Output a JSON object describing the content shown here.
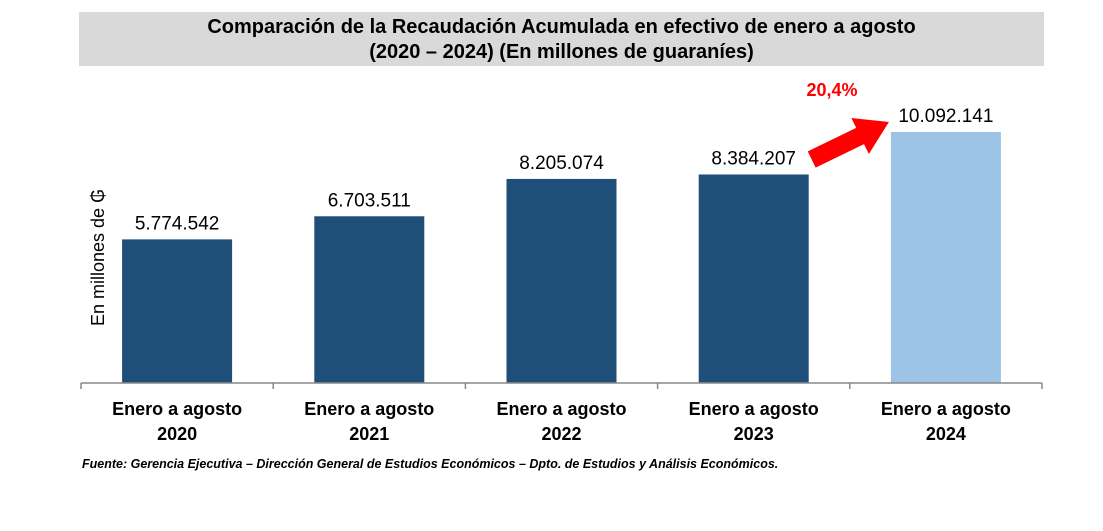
{
  "chart_data": {
    "type": "bar",
    "title_line1": "Comparación de la Recaudación Acumulada en efectivo de enero a agosto",
    "title_line2": "(2020 – 2024) (En millones de guaraníes)",
    "ylabel": "En millones de ₲",
    "xlabel": "",
    "categories": [
      {
        "line1": "Enero a agosto",
        "line2": "2020"
      },
      {
        "line1": "Enero a agosto",
        "line2": "2021"
      },
      {
        "line1": "Enero a agosto",
        "line2": "2022"
      },
      {
        "line1": "Enero a agosto",
        "line2": "2023"
      },
      {
        "line1": "Enero a agosto",
        "line2": "2024"
      }
    ],
    "values": [
      5774542,
      6703511,
      8205074,
      8384207,
      10092141
    ],
    "value_labels": [
      "5.774.542",
      "6.703.511",
      "8.205.074",
      "8.384.207",
      "10.092.141"
    ],
    "ylim": [
      0,
      10092141
    ],
    "grid": false,
    "colors": {
      "bar": "#1f4e79",
      "highlight_bar": "#9dc3e6",
      "arrow": "#ff0000",
      "annotation": "#ff0000",
      "axis": "#888888",
      "title_bg": "#d9d9d9"
    },
    "annotation": {
      "text": "20,4%",
      "from_index": 3,
      "to_index": 4
    }
  },
  "footer": {
    "source": "Fuente: Gerencia Ejecutiva – Dirección General de Estudios Económicos – Dpto. de Estudios y Análisis Económicos."
  }
}
